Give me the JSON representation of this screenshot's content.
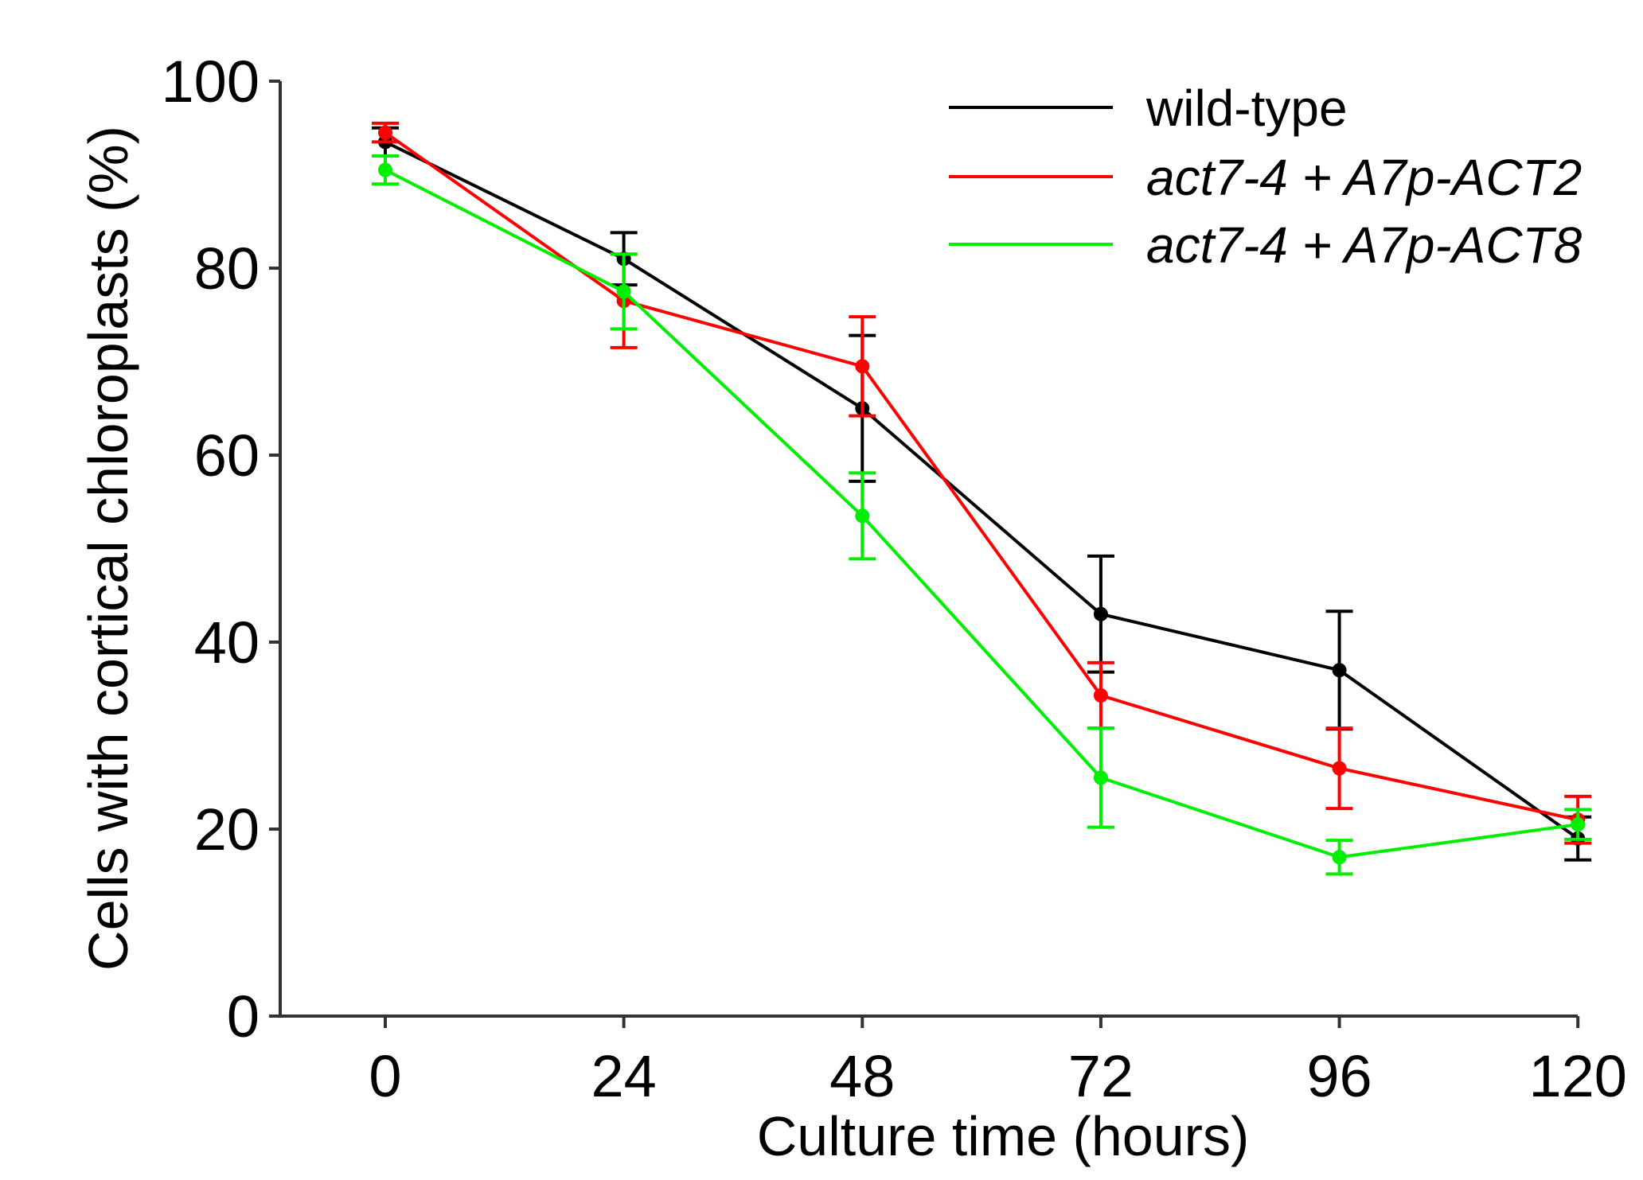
{
  "chart_data": {
    "type": "line",
    "title": "",
    "xlabel": "Culture time (hours)",
    "ylabel": "Cells with cortical chloroplasts (%)",
    "x": [
      0,
      24,
      48,
      72,
      96,
      120
    ],
    "x_ticks": [
      "0",
      "24",
      "48",
      "72",
      "96",
      "120"
    ],
    "y_ticks": [
      "0",
      "20",
      "40",
      "60",
      "80",
      "100"
    ],
    "xlim": [
      -10,
      120
    ],
    "ylim": [
      0,
      100
    ],
    "legend_position": "top-right",
    "series": [
      {
        "name": "wild-type",
        "italic": false,
        "color": "#000000",
        "values": [
          93.5,
          81,
          65,
          43,
          37,
          19
        ],
        "errors": [
          1.5,
          2.8,
          7.8,
          6.2,
          6.3,
          2.3
        ]
      },
      {
        "name": "act7-4 + A7p-ACT2",
        "italic": true,
        "color": "#ff0000",
        "values": [
          94.5,
          76.5,
          69.5,
          34.3,
          26.5,
          21
        ],
        "errors": [
          1.0,
          5.0,
          5.3,
          3.5,
          4.3,
          2.5
        ]
      },
      {
        "name": "act7-4 + A7p-ACT8",
        "italic": true,
        "color": "#00ee00",
        "values": [
          90.5,
          77.5,
          53.5,
          25.5,
          17,
          20.5
        ],
        "errors": [
          1.5,
          4.0,
          4.6,
          5.3,
          1.8,
          1.6
        ]
      }
    ]
  }
}
